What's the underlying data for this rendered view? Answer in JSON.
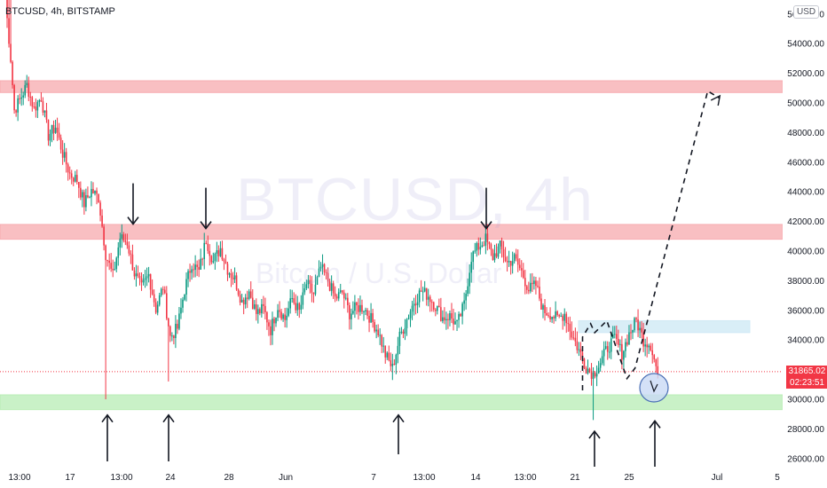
{
  "header": {
    "symbol_line": "BTCUSD, 4h, BITSTAMP"
  },
  "currency_badge": "USD",
  "watermark": {
    "symbol": "BTCUSD, 4h",
    "description": "Bitcoin / U.S. Dollar"
  },
  "last_price": {
    "value": "31865.02",
    "countdown": "02:23:51"
  },
  "colors": {
    "up": "#089981",
    "down": "#f23645",
    "resistance_zone": "#f7a9ae",
    "support_zone": "#b7ecb4",
    "target_zone": "#cce8f4",
    "dashed": "#131722"
  },
  "chart_data": {
    "type": "candlestick",
    "title": "BTCUSD, 4h, BITSTAMP",
    "ylabel": "USD",
    "ylim": [
      25400,
      57200
    ],
    "y_ticks": [
      "26000.00",
      "28000.00",
      "30000.00",
      "32000.00",
      "34000.00",
      "36000.00",
      "38000.00",
      "40000.00",
      "42000.00",
      "44000.00",
      "46000.00",
      "48000.00",
      "50000.00",
      "52000.00",
      "54000.00",
      "56000.00"
    ],
    "x_ticks": [
      "13:00",
      "17",
      "13:00",
      "24",
      "28",
      "Jun",
      "7",
      "13:00",
      "14",
      "13:00",
      "21",
      "25",
      "Jul",
      "5"
    ],
    "waypoints": [
      [
        0,
        57000
      ],
      [
        3,
        53000
      ],
      [
        5,
        49500
      ],
      [
        8,
        50200
      ],
      [
        12,
        51200
      ],
      [
        16,
        49600
      ],
      [
        20,
        50400
      ],
      [
        24,
        47800
      ],
      [
        28,
        48400
      ],
      [
        32,
        46600
      ],
      [
        36,
        45200
      ],
      [
        40,
        44800
      ],
      [
        44,
        43200
      ],
      [
        48,
        44100
      ],
      [
        52,
        43600
      ],
      [
        56,
        39800
      ],
      [
        60,
        38300
      ],
      [
        64,
        40900
      ],
      [
        68,
        40600
      ],
      [
        72,
        38500
      ],
      [
        76,
        37500
      ],
      [
        80,
        38400
      ],
      [
        84,
        36100
      ],
      [
        88,
        37600
      ],
      [
        92,
        34200
      ],
      [
        96,
        34800
      ],
      [
        100,
        37400
      ],
      [
        104,
        39200
      ],
      [
        108,
        38600
      ],
      [
        112,
        40800
      ],
      [
        116,
        39300
      ],
      [
        120,
        40200
      ],
      [
        124,
        38800
      ],
      [
        128,
        38100
      ],
      [
        132,
        36600
      ],
      [
        136,
        37300
      ],
      [
        140,
        35800
      ],
      [
        144,
        36100
      ],
      [
        148,
        34700
      ],
      [
        152,
        36300
      ],
      [
        156,
        35400
      ],
      [
        160,
        36800
      ],
      [
        164,
        35900
      ],
      [
        168,
        37800
      ],
      [
        172,
        37100
      ],
      [
        176,
        38900
      ],
      [
        180,
        38000
      ],
      [
        184,
        36800
      ],
      [
        188,
        37200
      ],
      [
        192,
        35800
      ],
      [
        196,
        36200
      ],
      [
        200,
        36200
      ],
      [
        204,
        35400
      ],
      [
        208,
        34600
      ],
      [
        212,
        33000
      ],
      [
        216,
        32100
      ],
      [
        220,
        34200
      ],
      [
        224,
        35400
      ],
      [
        228,
        36600
      ],
      [
        232,
        37300
      ],
      [
        236,
        37000
      ],
      [
        240,
        36300
      ],
      [
        244,
        35500
      ],
      [
        248,
        35600
      ],
      [
        252,
        35000
      ],
      [
        256,
        36400
      ],
      [
        260,
        39600
      ],
      [
        264,
        40300
      ],
      [
        268,
        40800
      ],
      [
        272,
        39600
      ],
      [
        276,
        40300
      ],
      [
        280,
        39200
      ],
      [
        284,
        39500
      ],
      [
        288,
        38600
      ],
      [
        292,
        37400
      ],
      [
        296,
        37700
      ],
      [
        300,
        36000
      ],
      [
        304,
        35800
      ],
      [
        308,
        35400
      ],
      [
        312,
        35800
      ],
      [
        316,
        34400
      ],
      [
        320,
        33300
      ],
      [
        324,
        32200
      ],
      [
        328,
        31700
      ],
      [
        332,
        32500
      ],
      [
        336,
        33500
      ],
      [
        340,
        34100
      ],
      [
        344,
        33100
      ],
      [
        348,
        34400
      ],
      [
        352,
        35300
      ],
      [
        356,
        34000
      ],
      [
        360,
        33700
      ],
      [
        364,
        31700
      ]
    ],
    "levels": {
      "resistance_upper": [
        50700,
        51500
      ],
      "resistance_lower": [
        40800,
        41800
      ],
      "support": [
        29300,
        30300
      ],
      "target_box": [
        34500,
        35300
      ]
    },
    "projection_path": [
      [
        1,
        30600
      ],
      [
        1,
        34200
      ],
      [
        3,
        35100
      ],
      [
        4,
        34500
      ],
      [
        7,
        35300
      ],
      [
        12,
        31400
      ],
      [
        14,
        32100
      ],
      [
        32,
        50800
      ],
      [
        35,
        50300
      ]
    ],
    "arrows_down": [
      42300,
      42000,
      42000
    ],
    "arrows_up": [
      29900,
      29900,
      29900,
      28800,
      29500
    ]
  }
}
